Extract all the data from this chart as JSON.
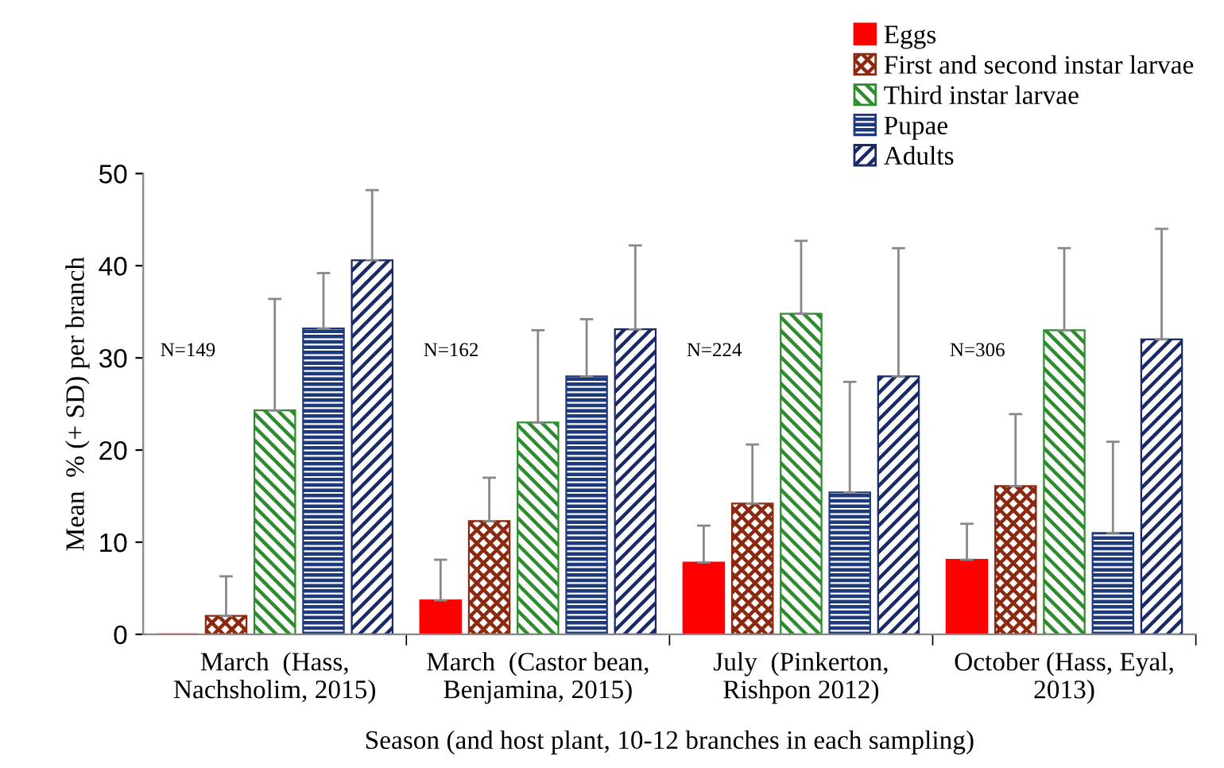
{
  "chart_data": {
    "type": "bar",
    "xlabel": "Season (and host plant, 10-12 branches in each sampling)",
    "ylabel": "Mean  % (+ SD) per branch",
    "categories": [
      "March  (Hass,\nNachsholim, 2015)",
      "March  (Castor bean,\nBenjamina, 2015)",
      "July  (Pinkerton,\nRishpon 2012)",
      "October (Hass, Eyal,\n2013)"
    ],
    "series": [
      {
        "name": "Eggs",
        "color": "#ff0000",
        "values": [
          0,
          3.7,
          7.8,
          8.1
        ],
        "errors": [
          null,
          [
            3.7,
            8.1
          ],
          [
            7.8,
            11.8
          ],
          [
            8.1,
            12.0
          ]
        ]
      },
      {
        "name": "First and second instar larvae",
        "color": "#8b2a10",
        "values": [
          2.0,
          12.3,
          14.2,
          16.1
        ],
        "errors": [
          [
            2.0,
            6.3
          ],
          [
            12.3,
            17.0
          ],
          [
            14.2,
            20.6
          ],
          [
            16.1,
            23.9
          ]
        ]
      },
      {
        "name": "Third instar larvae",
        "color": "#2e8b2e",
        "values": [
          24.3,
          23.0,
          34.8,
          33.0
        ],
        "errors": [
          [
            24.3,
            36.4
          ],
          [
            23.0,
            33.0
          ],
          [
            34.8,
            42.7
          ],
          [
            33.0,
            41.9
          ]
        ]
      },
      {
        "name": "Pupae",
        "color": "#1f3a7a",
        "values": [
          33.2,
          28.0,
          15.4,
          11.0
        ],
        "errors": [
          [
            33.2,
            39.2
          ],
          [
            28.0,
            34.2
          ],
          [
            15.4,
            27.4
          ],
          [
            11.0,
            20.9
          ]
        ]
      },
      {
        "name": "Adults",
        "color": "#1a2a66",
        "values": [
          40.6,
          33.1,
          28.0,
          32.0
        ],
        "errors": [
          [
            40.6,
            48.2
          ],
          [
            33.1,
            42.2
          ],
          [
            28.0,
            41.9
          ],
          [
            32.0,
            44.0
          ]
        ]
      }
    ],
    "annotations": [
      "N=149",
      "N=162",
      "N=224",
      "N=306"
    ],
    "ylim": [
      0,
      50
    ],
    "yticks": [
      0,
      10,
      20,
      30,
      40,
      50
    ],
    "grid": false,
    "legend": "top right"
  }
}
